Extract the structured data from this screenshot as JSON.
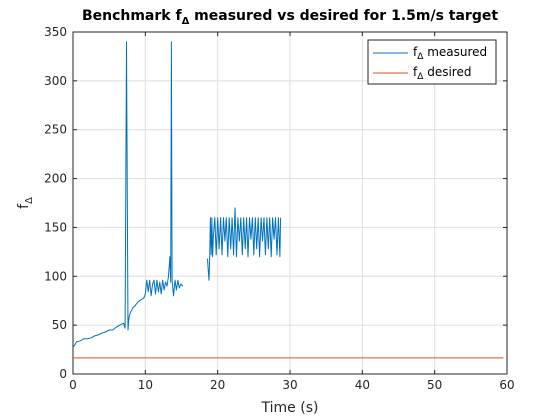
{
  "chart_data": {
    "type": "line",
    "title": {
      "prefix": "Benchmark f",
      "subscript": "Δ",
      "suffix": " measured vs desired for 1.5m/s target"
    },
    "xlabel": "Time (s)",
    "ylabel": {
      "main": "f",
      "subscript": "Δ"
    },
    "xlim": [
      0,
      60
    ],
    "ylim": [
      0,
      350
    ],
    "xticks": [
      0,
      10,
      20,
      30,
      40,
      50,
      60
    ],
    "yticks": [
      0,
      50,
      100,
      150,
      200,
      250,
      300,
      350
    ],
    "grid": true,
    "legend_location": "top-right",
    "series": [
      {
        "name": {
          "main": "f",
          "subscript": "Δ",
          "suffix": " measured"
        },
        "color": "#0072BD",
        "x": [
          0.1,
          0.5,
          1.0,
          1.5,
          2.0,
          2.5,
          3.0,
          3.5,
          4.0,
          4.5,
          5.0,
          5.5,
          6.0,
          6.5,
          7.0,
          7.2,
          7.4,
          7.6,
          7.7,
          7.8,
          8.0,
          8.3,
          8.6,
          9.0,
          9.4,
          9.8,
          10.0,
          10.2,
          10.4,
          10.6,
          10.8,
          11.0,
          11.2,
          11.4,
          11.6,
          11.8,
          12.0,
          12.2,
          12.4,
          12.6,
          12.8,
          13.0,
          13.2,
          13.4,
          13.5,
          13.6,
          13.7,
          13.9,
          14.1,
          14.3,
          14.5,
          14.7,
          14.9,
          15.2
        ],
        "y": [
          28,
          33,
          34,
          36,
          36,
          37,
          39,
          40,
          42,
          43,
          45,
          45,
          48,
          50,
          52,
          47,
          340,
          45,
          55,
          60,
          64,
          68,
          70,
          74,
          76,
          78,
          82,
          96,
          84,
          96,
          80,
          92,
          96,
          82,
          96,
          84,
          94,
          82,
          96,
          86,
          94,
          90,
          100,
          120,
          94,
          340,
          96,
          80,
          96,
          86,
          96,
          88,
          92,
          90
        ]
      },
      {
        "name": {
          "main": "f",
          "subscript": "Δ",
          "suffix": " measured"
        },
        "color": "#0072BD",
        "x": [
          18.6,
          18.7,
          18.8,
          18.9,
          19.0,
          19.1,
          19.2,
          19.3,
          19.4,
          19.6,
          19.8,
          20.0,
          20.2,
          20.4,
          20.6,
          20.8,
          21.0,
          21.2,
          21.4,
          21.6,
          21.8,
          22.0,
          22.2,
          22.4,
          22.6,
          22.8,
          23.0,
          23.2,
          23.4,
          23.6,
          23.8,
          24.0,
          24.2,
          24.4,
          24.6,
          24.8,
          25.0,
          25.2,
          25.4,
          25.6,
          25.8,
          26.0,
          26.2,
          26.4,
          26.6,
          26.8,
          27.0,
          27.2,
          27.4,
          27.6,
          27.8,
          28.0,
          28.2,
          28.4,
          28.6,
          28.7
        ],
        "y": [
          118,
          105,
          96,
          120,
          160,
          122,
          160,
          120,
          140,
          160,
          122,
          160,
          128,
          160,
          122,
          160,
          136,
          160,
          120,
          160,
          128,
          160,
          122,
          170,
          120,
          160,
          136,
          160,
          122,
          160,
          128,
          160,
          120,
          160,
          138,
          160,
          122,
          160,
          128,
          160,
          120,
          160,
          136,
          160,
          122,
          160,
          128,
          160,
          120,
          160,
          138,
          160,
          122,
          160,
          120,
          160
        ]
      },
      {
        "name": {
          "main": "f",
          "subscript": "Δ",
          "suffix": " desired"
        },
        "color": "#D95319",
        "x": [
          0,
          59.5
        ],
        "y": [
          16.5,
          16.5
        ]
      }
    ]
  }
}
